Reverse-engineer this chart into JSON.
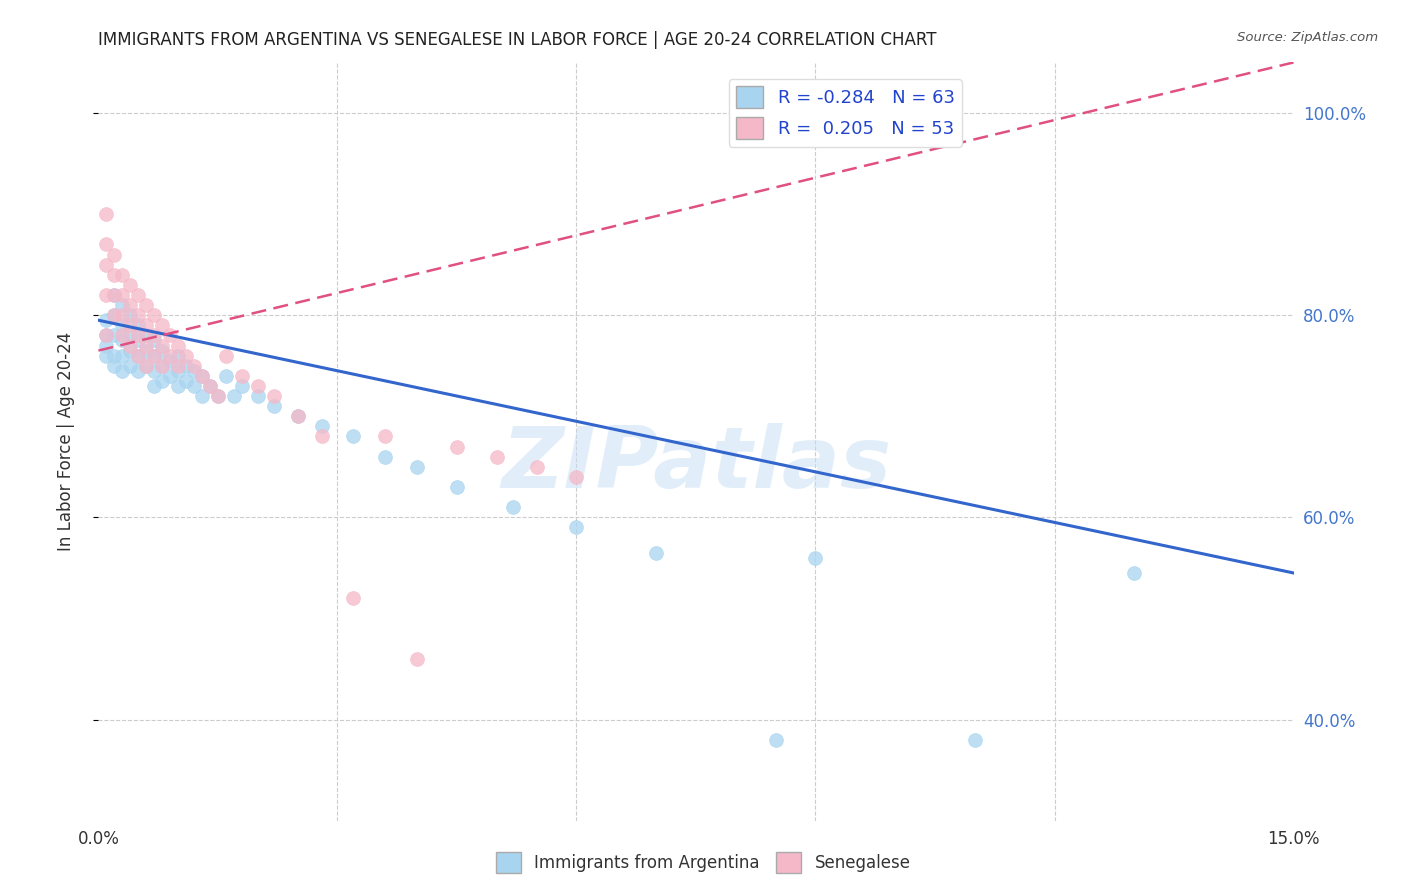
{
  "title": "IMMIGRANTS FROM ARGENTINA VS SENEGALESE IN LABOR FORCE | AGE 20-24 CORRELATION CHART",
  "source": "Source: ZipAtlas.com",
  "ylabel": "In Labor Force | Age 20-24",
  "xlim": [
    0.0,
    0.15
  ],
  "ylim": [
    0.3,
    1.05
  ],
  "xticks": [
    0.0,
    0.03,
    0.06,
    0.09,
    0.12,
    0.15
  ],
  "xtick_labels": [
    "0.0%",
    "",
    "",
    "",
    "",
    "15.0%"
  ],
  "yticks_right": [
    0.4,
    0.6,
    0.8,
    1.0
  ],
  "ytick_labels_right": [
    "40.0%",
    "60.0%",
    "80.0%",
    "100.0%"
  ],
  "blue_color": "#a8d4f0",
  "pink_color": "#f5b8c8",
  "blue_line_color": "#3366cc",
  "pink_line_color": "#e05080",
  "pink_line_dash": [
    6,
    3
  ],
  "R_blue": -0.284,
  "N_blue": 63,
  "R_pink": 0.205,
  "N_pink": 53,
  "legend_label_blue": "Immigrants from Argentina",
  "legend_label_pink": "Senegalese",
  "watermark": "ZIPatlas",
  "blue_scatter_x": [
    0.001,
    0.001,
    0.001,
    0.001,
    0.002,
    0.002,
    0.002,
    0.002,
    0.002,
    0.003,
    0.003,
    0.003,
    0.003,
    0.003,
    0.004,
    0.004,
    0.004,
    0.004,
    0.005,
    0.005,
    0.005,
    0.005,
    0.006,
    0.006,
    0.006,
    0.007,
    0.007,
    0.007,
    0.007,
    0.008,
    0.008,
    0.008,
    0.009,
    0.009,
    0.01,
    0.01,
    0.01,
    0.011,
    0.011,
    0.012,
    0.012,
    0.013,
    0.013,
    0.014,
    0.015,
    0.016,
    0.017,
    0.018,
    0.02,
    0.022,
    0.025,
    0.028,
    0.032,
    0.036,
    0.04,
    0.045,
    0.052,
    0.06,
    0.07,
    0.085,
    0.09,
    0.11,
    0.13
  ],
  "blue_scatter_y": [
    0.795,
    0.78,
    0.77,
    0.76,
    0.82,
    0.8,
    0.78,
    0.76,
    0.75,
    0.81,
    0.79,
    0.775,
    0.76,
    0.745,
    0.8,
    0.78,
    0.765,
    0.75,
    0.79,
    0.775,
    0.76,
    0.745,
    0.78,
    0.765,
    0.75,
    0.775,
    0.76,
    0.745,
    0.73,
    0.765,
    0.75,
    0.735,
    0.755,
    0.74,
    0.76,
    0.745,
    0.73,
    0.75,
    0.735,
    0.745,
    0.73,
    0.74,
    0.72,
    0.73,
    0.72,
    0.74,
    0.72,
    0.73,
    0.72,
    0.71,
    0.7,
    0.69,
    0.68,
    0.66,
    0.65,
    0.63,
    0.61,
    0.59,
    0.565,
    0.38,
    0.56,
    0.38,
    0.545
  ],
  "pink_scatter_x": [
    0.001,
    0.001,
    0.001,
    0.001,
    0.001,
    0.002,
    0.002,
    0.002,
    0.002,
    0.003,
    0.003,
    0.003,
    0.003,
    0.004,
    0.004,
    0.004,
    0.004,
    0.005,
    0.005,
    0.005,
    0.005,
    0.006,
    0.006,
    0.006,
    0.006,
    0.007,
    0.007,
    0.007,
    0.008,
    0.008,
    0.008,
    0.009,
    0.009,
    0.01,
    0.01,
    0.011,
    0.012,
    0.013,
    0.014,
    0.015,
    0.016,
    0.018,
    0.02,
    0.022,
    0.025,
    0.028,
    0.032,
    0.036,
    0.04,
    0.045,
    0.05,
    0.055,
    0.06
  ],
  "pink_scatter_y": [
    0.9,
    0.87,
    0.85,
    0.82,
    0.78,
    0.86,
    0.84,
    0.82,
    0.8,
    0.84,
    0.82,
    0.8,
    0.78,
    0.83,
    0.81,
    0.79,
    0.77,
    0.82,
    0.8,
    0.78,
    0.76,
    0.81,
    0.79,
    0.77,
    0.75,
    0.8,
    0.78,
    0.76,
    0.79,
    0.77,
    0.75,
    0.78,
    0.76,
    0.77,
    0.75,
    0.76,
    0.75,
    0.74,
    0.73,
    0.72,
    0.76,
    0.74,
    0.73,
    0.72,
    0.7,
    0.68,
    0.52,
    0.68,
    0.46,
    0.67,
    0.66,
    0.65,
    0.64
  ]
}
